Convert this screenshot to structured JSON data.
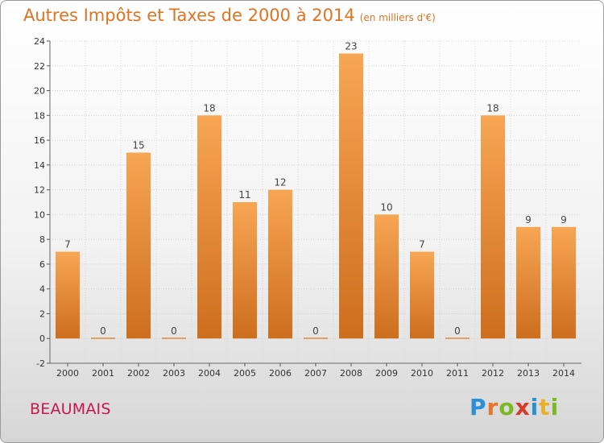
{
  "header": {
    "title": "Autres Impôts et Taxes de 2000 à 2014",
    "unit": "(en milliers d'€)"
  },
  "footer": {
    "commune": "BEAUMAIS",
    "logo": "Proxiti"
  },
  "colors": {
    "title": "#e07322",
    "commune": "#c8174c",
    "bar_top": "#f7a653",
    "bar_bottom": "#cd6e1d"
  },
  "chart_data": {
    "type": "bar",
    "categories": [
      "2000",
      "2001",
      "2002",
      "2003",
      "2004",
      "2005",
      "2006",
      "2007",
      "2008",
      "2009",
      "2010",
      "2011",
      "2012",
      "2013",
      "2014"
    ],
    "values": [
      7,
      0,
      15,
      0,
      18,
      11,
      12,
      0,
      23,
      10,
      7,
      0,
      18,
      9,
      9
    ],
    "title": "Autres Impôts et Taxes de 2000 à 2014",
    "ylabel": "(en milliers d'€)",
    "ylim": [
      -2,
      24
    ],
    "yticks": [
      -2,
      0,
      2,
      4,
      6,
      8,
      10,
      12,
      14,
      16,
      18,
      20,
      22,
      24
    ],
    "grid": true,
    "data_labels": true
  }
}
